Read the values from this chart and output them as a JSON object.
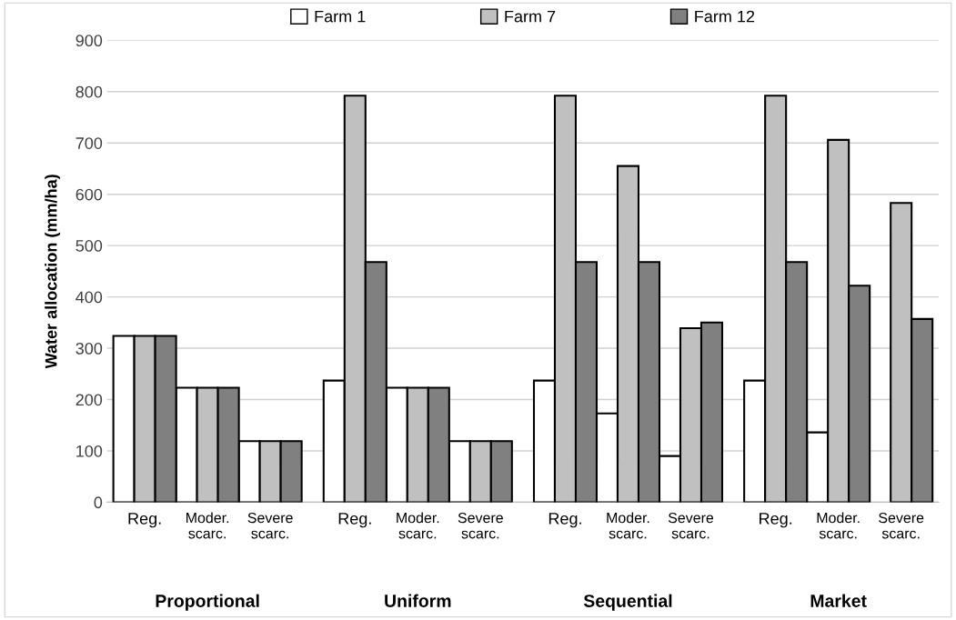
{
  "chart_data": {
    "type": "bar",
    "ylabel": "Water allocation (mm/ha)",
    "categories": [
      "Reg.",
      "Moder.\nscarc.",
      "Severe\nscarc.",
      "Reg.",
      "Moder.\nscarc.",
      "Severe\nscarc.",
      "Reg.",
      "Moder.\nscarc.",
      "Severe\nscarc.",
      "Reg.",
      "Moder.\nscarc.",
      "Severe\nscarc."
    ],
    "series": [
      {
        "name": "Farm 1",
        "color": "#ffffff",
        "values": [
          324,
          223,
          119,
          237,
          223,
          119,
          237,
          173,
          90,
          237,
          136,
          null
        ]
      },
      {
        "name": "Farm 7",
        "color": "#c0c0c0",
        "values": [
          324,
          223,
          119,
          792,
          223,
          119,
          792,
          655,
          339,
          792,
          706,
          583
        ]
      },
      {
        "name": "Farm 12",
        "color": "#808080",
        "values": [
          324,
          223,
          119,
          468,
          223,
          119,
          468,
          468,
          350,
          468,
          422,
          357
        ]
      }
    ],
    "annotations": [
      "Proportional",
      "Uniform",
      "Sequential",
      "Market"
    ],
    "ylim": [
      0,
      900
    ],
    "yticks": [
      0,
      100,
      200,
      300,
      400,
      500,
      600,
      700,
      800,
      900
    ],
    "grid": "y",
    "legend": "top"
  }
}
